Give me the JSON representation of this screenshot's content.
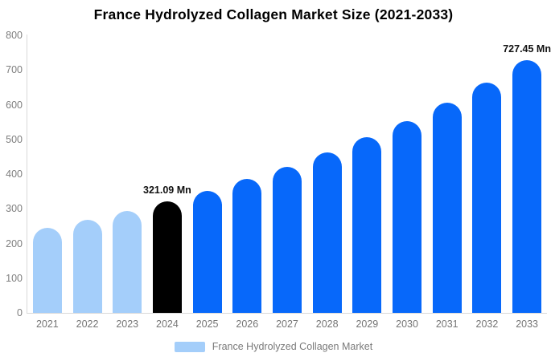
{
  "title": "France Hydrolyzed Collagen Market Size (2021-2033)",
  "legend": {
    "label": "France Hydrolyzed Collagen Market",
    "swatch_color": "#a4cefa"
  },
  "colors": {
    "light_blue_bar": "#a4cefa",
    "highlight_bar": "#000000",
    "blue_bar": "#0768fa",
    "axis_line": "#d9d9d9",
    "tick_text": "#7d7d7d",
    "xlabel_text": "#757575",
    "legend_text": "#7a7a7a",
    "value_label_text": "#111111",
    "title_text": "#000000",
    "background": "#ffffff"
  },
  "chart_data": {
    "type": "bar",
    "title": "France Hydrolyzed Collagen Market Size (2021-2033)",
    "xlabel": "",
    "ylabel": "",
    "categories": [
      "2021",
      "2022",
      "2023",
      "2024",
      "2025",
      "2026",
      "2027",
      "2028",
      "2029",
      "2030",
      "2031",
      "2032",
      "2033"
    ],
    "values": [
      244.5,
      267.7,
      293.2,
      321.09,
      351.6,
      385.1,
      421.7,
      461.8,
      505.7,
      553.7,
      606.4,
      663.9,
      727.45
    ],
    "bar_colors": [
      "#a4cefa",
      "#a4cefa",
      "#a4cefa",
      "#000000",
      "#0768fa",
      "#0768fa",
      "#0768fa",
      "#0768fa",
      "#0768fa",
      "#0768fa",
      "#0768fa",
      "#0768fa",
      "#0768fa"
    ],
    "data_labels": {
      "2024": "321.09 Mn",
      "2033": "727.45 Mn"
    },
    "unit": "Mn",
    "ylim": [
      0,
      800
    ],
    "yticks": [
      0,
      100,
      200,
      300,
      400,
      500,
      600,
      700,
      800
    ],
    "grid": false,
    "legend_position": "bottom",
    "legend_entries": [
      "France Hydrolyzed Collagen Market"
    ]
  }
}
